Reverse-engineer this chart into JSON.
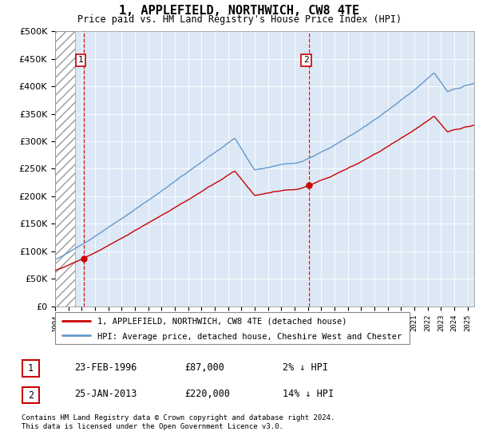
{
  "title": "1, APPLEFIELD, NORTHWICH, CW8 4TE",
  "subtitle": "Price paid vs. HM Land Registry's House Price Index (HPI)",
  "legend_line1": "1, APPLEFIELD, NORTHWICH, CW8 4TE (detached house)",
  "legend_line2": "HPI: Average price, detached house, Cheshire West and Chester",
  "footnote1": "Contains HM Land Registry data © Crown copyright and database right 2024.",
  "footnote2": "This data is licensed under the Open Government Licence v3.0.",
  "table_rows": [
    {
      "num": "1",
      "date": "23-FEB-1996",
      "price": "£87,000",
      "hpi": "2% ↓ HPI"
    },
    {
      "num": "2",
      "date": "25-JAN-2013",
      "price": "£220,000",
      "hpi": "14% ↓ HPI"
    }
  ],
  "sale1_year": 1996.14,
  "sale1_price": 87000,
  "sale2_year": 2013.07,
  "sale2_price": 220000,
  "hpi_color": "#6699cc",
  "price_color": "#cc0000",
  "dashed_color": "#cc0000",
  "background_plot_color": "#dce8f5",
  "ylim": [
    0,
    500000
  ],
  "xlim_start": 1994.0,
  "xlim_end": 2025.5,
  "hatch_end": 1995.5
}
